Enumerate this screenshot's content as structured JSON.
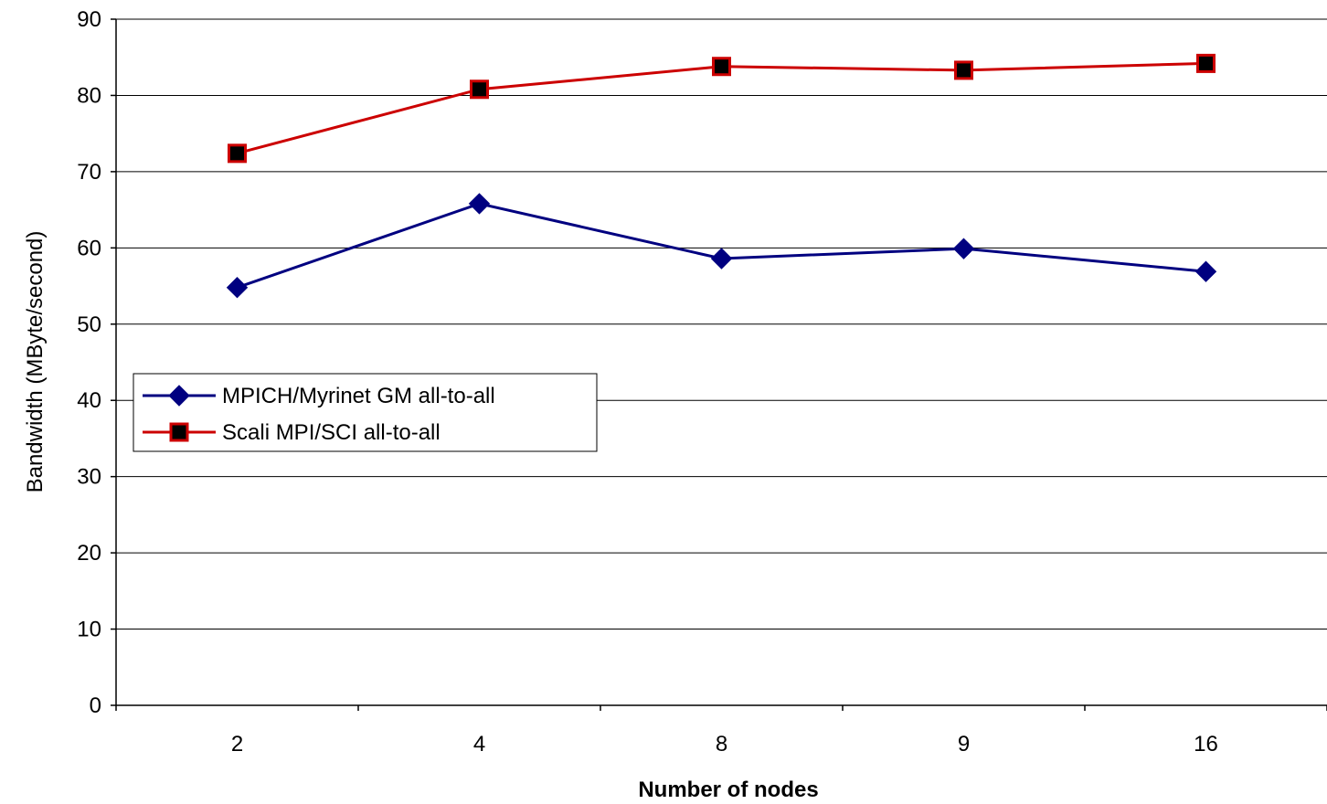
{
  "chart_data": {
    "type": "line",
    "title": "",
    "xlabel": "Number of nodes",
    "ylabel": "Bandwidth (MByte/second)",
    "categories": [
      "2",
      "4",
      "8",
      "9",
      "16"
    ],
    "ylim": [
      0,
      90
    ],
    "yticks": [
      "0",
      "10",
      "20",
      "30",
      "40",
      "50",
      "60",
      "70",
      "80",
      "90"
    ],
    "grid": "horizontal",
    "legend_position": "left-middle",
    "series": [
      {
        "name": "MPICH/Myrinet GM all-to-all",
        "values": [
          54.8,
          65.8,
          58.6,
          59.9,
          56.9
        ],
        "color": "#000080",
        "marker": "diamond"
      },
      {
        "name": "Scali MPI/SCI all-to-all",
        "values": [
          72.4,
          80.8,
          83.8,
          83.3,
          84.2
        ],
        "color": "#cc0000",
        "marker": "square"
      }
    ]
  }
}
